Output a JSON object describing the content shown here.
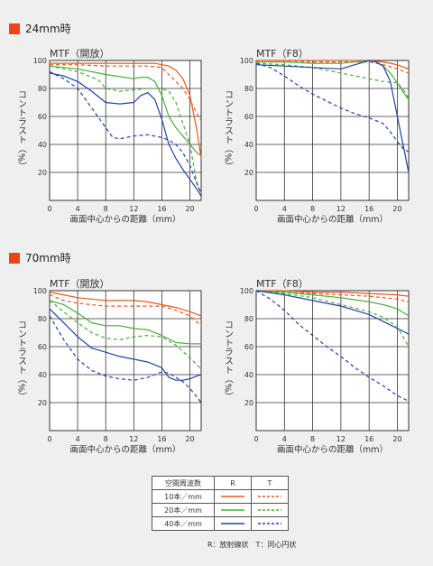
{
  "sections": [
    {
      "title": "24mm時"
    },
    {
      "title": "70mm時"
    }
  ],
  "colors": {
    "10": "#e8581c",
    "20": "#4caf3a",
    "40": "#2242a8"
  },
  "legend": {
    "header": [
      "空間周波数",
      "R",
      "T"
    ],
    "rows": [
      {
        "label": "10本／mm",
        "color": "#e8581c"
      },
      {
        "label": "20本／mm",
        "color": "#4caf3a"
      },
      {
        "label": "40本／mm",
        "color": "#2242a8"
      }
    ],
    "note": "R：放射線状　T：同心円状"
  },
  "chart_data": [
    {
      "type": "line",
      "title": "MTF（開放）",
      "xlabel": "画面中心からの距離（mm）",
      "ylabel": "コントラスト（%）",
      "xlim": [
        0,
        21.6
      ],
      "ylim": [
        0,
        100
      ],
      "xticks": [
        0,
        4,
        8,
        12,
        16,
        20
      ],
      "yticks": [
        20,
        40,
        60,
        80,
        100
      ],
      "series": [
        {
          "freq": "10",
          "style": "R",
          "x": [
            0,
            4,
            8,
            12,
            15,
            16,
            17,
            18,
            19,
            20,
            21,
            21.6
          ],
          "y": [
            98,
            98,
            98,
            98,
            98,
            97,
            96,
            93,
            87,
            75,
            50,
            30
          ]
        },
        {
          "freq": "10",
          "style": "T",
          "x": [
            0,
            4,
            8,
            12,
            14,
            16,
            17,
            18,
            19,
            20,
            21,
            21.6
          ],
          "y": [
            97,
            97,
            96,
            96,
            96,
            95,
            90,
            85,
            80,
            72,
            62,
            57
          ]
        },
        {
          "freq": "20",
          "style": "R",
          "x": [
            0,
            4,
            8,
            12,
            13,
            14,
            15,
            16,
            17,
            18,
            19,
            20,
            21,
            21.6
          ],
          "y": [
            96,
            94,
            90,
            87,
            88,
            88,
            85,
            75,
            60,
            52,
            46,
            40,
            34,
            32
          ]
        },
        {
          "freq": "20",
          "style": "T",
          "x": [
            0,
            4,
            7,
            8,
            10,
            12,
            14,
            16,
            17,
            18,
            19,
            20,
            21,
            21.6
          ],
          "y": [
            96,
            92,
            86,
            80,
            78,
            79,
            80,
            80,
            78,
            70,
            55,
            40,
            12,
            5
          ]
        },
        {
          "freq": "40",
          "style": "R",
          "x": [
            0,
            2,
            4,
            6,
            8,
            10,
            12,
            13,
            14,
            15,
            16,
            17,
            18,
            19,
            20,
            21,
            21.6
          ],
          "y": [
            91,
            89,
            85,
            78,
            70,
            69,
            70,
            75,
            77,
            72,
            58,
            40,
            30,
            22,
            15,
            8,
            3
          ]
        },
        {
          "freq": "40",
          "style": "T",
          "x": [
            0,
            2,
            4,
            6,
            8,
            9,
            10,
            12,
            14,
            16,
            17,
            18,
            19,
            20,
            21,
            21.6
          ],
          "y": [
            92,
            87,
            80,
            66,
            52,
            45,
            44,
            46,
            47,
            45,
            43,
            40,
            34,
            25,
            12,
            5
          ]
        }
      ]
    },
    {
      "type": "line",
      "title": "MTF（F8）",
      "xlabel": "画面中心からの距離（mm）",
      "ylabel": "コントラスト（%）",
      "xlim": [
        0,
        21.6
      ],
      "ylim": [
        0,
        100
      ],
      "xticks": [
        0,
        4,
        8,
        12,
        16,
        20
      ],
      "yticks": [
        20,
        40,
        60,
        80,
        100
      ],
      "series": [
        {
          "freq": "10",
          "style": "R",
          "x": [
            0,
            4,
            8,
            12,
            16,
            18,
            19,
            20,
            21,
            21.6
          ],
          "y": [
            100,
            100,
            100,
            100,
            100,
            99,
            98,
            97,
            95,
            94
          ]
        },
        {
          "freq": "10",
          "style": "T",
          "x": [
            0,
            4,
            8,
            12,
            16,
            18,
            20,
            21,
            21.6
          ],
          "y": [
            100,
            100,
            99,
            99,
            99,
            97,
            94,
            92,
            91
          ]
        },
        {
          "freq": "20",
          "style": "R",
          "x": [
            0,
            4,
            8,
            12,
            14,
            16,
            17,
            18,
            19,
            20,
            21,
            21.6
          ],
          "y": [
            99,
            99,
            98,
            98,
            99,
            100,
            99,
            96,
            91,
            84,
            76,
            72
          ]
        },
        {
          "freq": "20",
          "style": "T",
          "x": [
            0,
            4,
            8,
            12,
            14,
            16,
            18,
            20,
            21,
            21.6
          ],
          "y": [
            98,
            97,
            95,
            91,
            89,
            87,
            85,
            84,
            78,
            73
          ]
        },
        {
          "freq": "40",
          "style": "R",
          "x": [
            0,
            4,
            8,
            12,
            14,
            16,
            17,
            18,
            19,
            20,
            21,
            21.6
          ],
          "y": [
            97,
            96,
            95,
            94,
            97,
            100,
            99,
            96,
            85,
            60,
            35,
            20
          ]
        },
        {
          "freq": "40",
          "style": "T",
          "x": [
            0,
            2,
            4,
            6,
            8,
            10,
            12,
            14,
            16,
            18,
            19,
            20,
            21,
            21.6
          ],
          "y": [
            98,
            95,
            89,
            82,
            76,
            71,
            66,
            62,
            59,
            55,
            49,
            42,
            36,
            35
          ]
        }
      ]
    },
    {
      "type": "line",
      "title": "MTF（開放）",
      "xlabel": "画面中心からの距離（mm）",
      "ylabel": "コントラスト（%）",
      "xlim": [
        0,
        21.6
      ],
      "ylim": [
        0,
        100
      ],
      "xticks": [
        0,
        4,
        8,
        12,
        16,
        20
      ],
      "yticks": [
        20,
        40,
        60,
        80,
        100
      ],
      "series": [
        {
          "freq": "10",
          "style": "R",
          "x": [
            0,
            2,
            4,
            6,
            8,
            10,
            12,
            14,
            16,
            18,
            20,
            21.6
          ],
          "y": [
            99,
            97,
            95,
            94,
            93,
            93,
            93,
            92,
            90,
            88,
            85,
            82
          ]
        },
        {
          "freq": "10",
          "style": "T",
          "x": [
            0,
            2,
            4,
            6,
            8,
            10,
            12,
            14,
            16,
            18,
            20,
            21.6
          ],
          "y": [
            97,
            93,
            91,
            90,
            89,
            89,
            89,
            89,
            89,
            86,
            82,
            75
          ]
        },
        {
          "freq": "20",
          "style": "R",
          "x": [
            0,
            2,
            4,
            6,
            8,
            10,
            12,
            14,
            16,
            18,
            20,
            21.6
          ],
          "y": [
            93,
            90,
            84,
            77,
            75,
            75,
            73,
            72,
            68,
            63,
            62,
            62
          ]
        },
        {
          "freq": "20",
          "style": "T",
          "x": [
            0,
            2,
            4,
            6,
            8,
            10,
            12,
            14,
            16,
            18,
            20,
            21.6
          ],
          "y": [
            93,
            85,
            77,
            70,
            66,
            65,
            67,
            68,
            67,
            61,
            52,
            44
          ]
        },
        {
          "freq": "40",
          "style": "R",
          "x": [
            0,
            2,
            4,
            6,
            8,
            10,
            12,
            14,
            16,
            17,
            18,
            19,
            20,
            21,
            21.6
          ],
          "y": [
            87,
            77,
            67,
            59,
            56,
            53,
            51,
            49,
            45,
            38,
            36,
            36,
            37,
            39,
            40
          ]
        },
        {
          "freq": "40",
          "style": "T",
          "x": [
            0,
            2,
            4,
            6,
            8,
            10,
            12,
            14,
            16,
            17,
            18,
            19,
            20,
            21,
            21.6
          ],
          "y": [
            82,
            65,
            51,
            43,
            39,
            37,
            36,
            38,
            42,
            41,
            38,
            35,
            30,
            24,
            20
          ]
        }
      ]
    },
    {
      "type": "line",
      "title": "MTF（F8）",
      "xlabel": "画面中心からの距離（mm）",
      "ylabel": "コントラスト（%）",
      "xlim": [
        0,
        21.6
      ],
      "ylim": [
        0,
        100
      ],
      "xticks": [
        0,
        4,
        8,
        12,
        16,
        20
      ],
      "yticks": [
        20,
        40,
        60,
        80,
        100
      ],
      "series": [
        {
          "freq": "10",
          "style": "R",
          "x": [
            0,
            4,
            8,
            12,
            16,
            20,
            21.6
          ],
          "y": [
            100,
            100,
            99,
            99,
            98,
            97,
            96
          ]
        },
        {
          "freq": "10",
          "style": "T",
          "x": [
            0,
            4,
            8,
            12,
            16,
            20,
            21.6
          ],
          "y": [
            100,
            99,
            98,
            97,
            96,
            94,
            92
          ]
        },
        {
          "freq": "20",
          "style": "R",
          "x": [
            0,
            4,
            8,
            12,
            16,
            18,
            20,
            21.6
          ],
          "y": [
            100,
            99,
            97,
            95,
            92,
            90,
            87,
            82
          ]
        },
        {
          "freq": "20",
          "style": "T",
          "x": [
            0,
            4,
            8,
            12,
            16,
            18,
            20,
            21.6
          ],
          "y": [
            100,
            98,
            95,
            90,
            85,
            81,
            74,
            60
          ]
        },
        {
          "freq": "40",
          "style": "R",
          "x": [
            0,
            4,
            8,
            12,
            16,
            18,
            20,
            21.6
          ],
          "y": [
            100,
            97,
            93,
            89,
            83,
            78,
            73,
            69
          ]
        },
        {
          "freq": "40",
          "style": "T",
          "x": [
            0,
            2,
            4,
            6,
            8,
            10,
            12,
            14,
            16,
            18,
            20,
            21.6
          ],
          "y": [
            100,
            94,
            86,
            76,
            68,
            60,
            53,
            45,
            38,
            32,
            25,
            21
          ]
        }
      ]
    }
  ]
}
